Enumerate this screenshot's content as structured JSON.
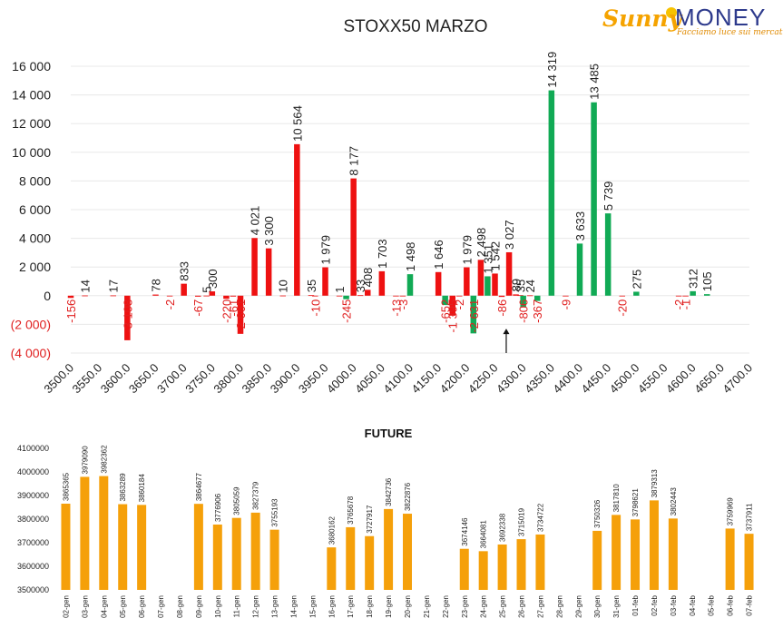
{
  "logo": {
    "brand_a": "Sunny",
    "brand_b": "MONEY",
    "tagline": "Facciamo luce sui mercati"
  },
  "chart_data": [
    {
      "type": "bar",
      "title": "STOXX50 MARZO",
      "xlabel": "",
      "ylabel": "",
      "ylim": [
        -4000,
        16000
      ],
      "ytick_values": [
        -4000,
        -2000,
        0,
        2000,
        4000,
        6000,
        8000,
        10000,
        12000,
        14000,
        16000
      ],
      "ytick_labels": [
        "(4 000)",
        "(2 000)",
        "0",
        "2 000",
        "4 000",
        "6 000",
        "8 000",
        "10 000",
        "12 000",
        "14 000",
        "16 000"
      ],
      "categories": [
        "3500.0",
        "3550.0",
        "3600.0",
        "3650.0",
        "3700.0",
        "3750.0",
        "3800.0",
        "3850.0",
        "3900.0",
        "3950.0",
        "4000.0",
        "4050.0",
        "4100.0",
        "4150.0",
        "4200.0",
        "4250.0",
        "4300.0",
        "4350.0",
        "4400.0",
        "4450.0",
        "4500.0",
        "4550.0",
        "4600.0",
        "4650.0",
        "4700.0"
      ],
      "colors": {
        "red": "#ee1111",
        "green": "#11aa55",
        "neg_label": "#e02020",
        "pos_label": "#222222",
        "grid": "#e8e8e8"
      },
      "grid": true,
      "annotations": [
        {
          "type": "arrow",
          "x": 4270,
          "from_y": -4000,
          "to_y": -2300
        }
      ],
      "bars": [
        {
          "x": 3500,
          "v": -156,
          "label": "-156",
          "c": "red"
        },
        {
          "x": 3525,
          "v": 14,
          "label": "14",
          "c": "red"
        },
        {
          "x": 3575,
          "v": 17,
          "label": "17",
          "c": "red"
        },
        {
          "x": 3600,
          "v": -3108,
          "label": "-3 108",
          "c": "red"
        },
        {
          "x": 3650,
          "v": 78,
          "label": "78",
          "c": "red"
        },
        {
          "x": 3675,
          "v": -2,
          "label": "-2",
          "c": "red"
        },
        {
          "x": 3700,
          "v": 833,
          "label": "833",
          "c": "red"
        },
        {
          "x": 3725,
          "v": -67,
          "label": "-67",
          "c": "red"
        },
        {
          "x": 3740,
          "v": 5,
          "label": "5",
          "c": "red"
        },
        {
          "x": 3750,
          "v": 300,
          "label": "300",
          "c": "red"
        },
        {
          "x": 3775,
          "v": -220,
          "label": "-220",
          "c": "red"
        },
        {
          "x": 3787,
          "v": -61,
          "label": "-61",
          "c": "red"
        },
        {
          "x": 3800,
          "v": -2661,
          "label": "-2 661",
          "c": "red"
        },
        {
          "x": 3825,
          "v": 4021,
          "label": "4 021",
          "c": "red"
        },
        {
          "x": 3850,
          "v": 3300,
          "label": "3 300",
          "c": "red"
        },
        {
          "x": 3875,
          "v": 10,
          "label": "10",
          "c": "red"
        },
        {
          "x": 3900,
          "v": 10564,
          "label": "10 564",
          "c": "red"
        },
        {
          "x": 3925,
          "v": 35,
          "label": "35",
          "c": "red"
        },
        {
          "x": 3932,
          "v": -10,
          "label": "-10",
          "c": "red"
        },
        {
          "x": 3950,
          "v": 1979,
          "label": "1 979",
          "c": "red"
        },
        {
          "x": 3975,
          "v": 1,
          "label": "1",
          "c": "red"
        },
        {
          "x": 3987,
          "v": -245,
          "label": "-245",
          "c": "green"
        },
        {
          "x": 4000,
          "v": 8177,
          "label": "8 177",
          "c": "red"
        },
        {
          "x": 4012,
          "v": 33,
          "label": "33",
          "c": "red"
        },
        {
          "x": 4025,
          "v": 408,
          "label": "408",
          "c": "red"
        },
        {
          "x": 4050,
          "v": 1703,
          "label": "1 703",
          "c": "red"
        },
        {
          "x": 4075,
          "v": -13,
          "label": "-13",
          "c": "red"
        },
        {
          "x": 4087,
          "v": -3,
          "label": "-3",
          "c": "red"
        },
        {
          "x": 4100,
          "v": 1498,
          "label": "1 498",
          "c": "green"
        },
        {
          "x": 4150,
          "v": 1646,
          "label": "1 646",
          "c": "red"
        },
        {
          "x": 4162,
          "v": -652,
          "label": "-652",
          "c": "green"
        },
        {
          "x": 4175,
          "v": -1395,
          "label": "-1 395",
          "c": "red"
        },
        {
          "x": 4187,
          "v": -2,
          "label": "-2",
          "c": "red"
        },
        {
          "x": 4200,
          "v": 1979,
          "label": "1 979",
          "c": "red"
        },
        {
          "x": 4212,
          "v": -2631,
          "label": "-2 631",
          "c": "green"
        },
        {
          "x": 4225,
          "v": 2498,
          "label": "2 498",
          "c": "red"
        },
        {
          "x": 4237,
          "v": 1351,
          "label": "1 351",
          "c": "green"
        },
        {
          "x": 4250,
          "v": 1542,
          "label": "1 542",
          "c": "red"
        },
        {
          "x": 4262,
          "v": -86,
          "label": "-86",
          "c": "red"
        },
        {
          "x": 4275,
          "v": 3027,
          "label": "3 027",
          "c": "red"
        },
        {
          "x": 4287,
          "v": 89,
          "label": "89",
          "c": "red"
        },
        {
          "x": 4295,
          "v": 35,
          "label": "35",
          "c": "red"
        },
        {
          "x": 4300,
          "v": -806,
          "label": "-806",
          "c": "green"
        },
        {
          "x": 4312,
          "v": 24,
          "label": "24",
          "c": "red"
        },
        {
          "x": 4325,
          "v": -367,
          "label": "-367",
          "c": "green"
        },
        {
          "x": 4350,
          "v": 14319,
          "label": "14 319",
          "c": "green"
        },
        {
          "x": 4375,
          "v": -9,
          "label": "-9",
          "c": "red"
        },
        {
          "x": 4400,
          "v": 3633,
          "label": "3 633",
          "c": "green"
        },
        {
          "x": 4425,
          "v": 13485,
          "label": "13 485",
          "c": "green"
        },
        {
          "x": 4450,
          "v": 5739,
          "label": "5 739",
          "c": "green"
        },
        {
          "x": 4475,
          "v": -20,
          "label": "-20",
          "c": "red"
        },
        {
          "x": 4500,
          "v": 275,
          "label": "275",
          "c": "green"
        },
        {
          "x": 4575,
          "v": -2,
          "label": "-2",
          "c": "red"
        },
        {
          "x": 4587,
          "v": -1,
          "label": "-1",
          "c": "red"
        },
        {
          "x": 4600,
          "v": 312,
          "label": "312",
          "c": "green"
        },
        {
          "x": 4625,
          "v": 105,
          "label": "105",
          "c": "green"
        }
      ]
    },
    {
      "type": "bar",
      "title": "FUTURE",
      "xlabel": "",
      "ylabel": "",
      "ylim": [
        3500000,
        4100000
      ],
      "ytick_values": [
        3500000,
        3600000,
        3700000,
        3800000,
        3900000,
        4000000,
        4100000
      ],
      "ytick_labels": [
        "3500000",
        "3600000",
        "3700000",
        "3800000",
        "3900000",
        "4000000",
        "4100000"
      ],
      "color": "#f5a00a",
      "grid": false,
      "categories": [
        "02-gen",
        "03-gen",
        "04-gen",
        "05-gen",
        "06-gen",
        "07-gen",
        "08-gen",
        "09-gen",
        "10-gen",
        "11-gen",
        "12-gen",
        "13-gen",
        "14-gen",
        "15-gen",
        "16-gen",
        "17-gen",
        "18-gen",
        "19-gen",
        "20-gen",
        "21-gen",
        "22-gen",
        "23-gen",
        "24-gen",
        "25-gen",
        "26-gen",
        "27-gen",
        "28-gen",
        "29-gen",
        "30-gen",
        "31-gen",
        "01-feb",
        "02-feb",
        "03-feb",
        "04-feb",
        "05-feb",
        "06-feb",
        "07-feb"
      ],
      "values": [
        3865365,
        3979090,
        3982362,
        3863289,
        3860184,
        null,
        null,
        3864677,
        3776906,
        3805059,
        3827379,
        3755193,
        null,
        null,
        3680162,
        3765678,
        3727917,
        3842736,
        3822876,
        null,
        null,
        3674146,
        3664081,
        3692338,
        3715019,
        3734722,
        null,
        null,
        3750326,
        3817810,
        3798621,
        3879313,
        3802443,
        null,
        null,
        3759969,
        3737911
      ],
      "value_labels": [
        "3865365",
        "3979090",
        "3982362",
        "3863289",
        "3860184",
        "",
        "",
        "3864677",
        "3776906",
        "3805059",
        "3827379",
        "3755193",
        "",
        "",
        "3680162",
        "3765678",
        "3727917",
        "3842736",
        "3822876",
        "",
        "",
        "3674146",
        "3664081",
        "3692338",
        "3715019",
        "3734722",
        "",
        "",
        "3750326",
        "3817810",
        "3798621",
        "3879313",
        "3802443",
        "",
        "",
        "3759969",
        "3737911"
      ]
    }
  ]
}
